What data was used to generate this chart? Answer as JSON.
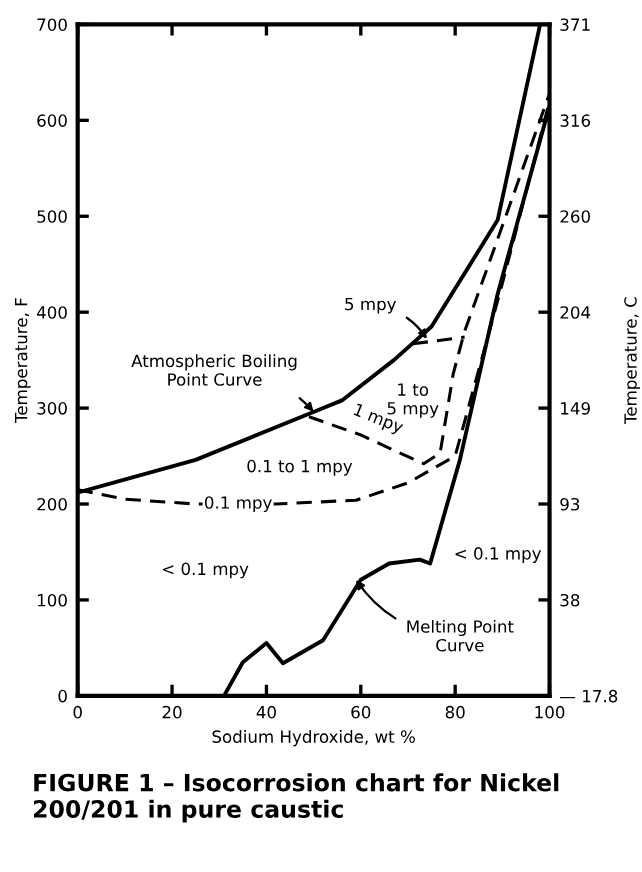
{
  "chart_data": {
    "type": "line",
    "title": "FIGURE 1 – Isocorrosion chart for Nickel 200/201 in pure caustic",
    "xlabel": "Sodium Hydroxide, wt %",
    "ylabel": "Temperature, F",
    "y2label": "Temperature, C",
    "xlim": [
      0,
      100
    ],
    "xticks": [
      0,
      20,
      40,
      60,
      80,
      100
    ],
    "ylim": [
      0,
      700
    ],
    "yticks": [
      0,
      100,
      200,
      300,
      400,
      500,
      600,
      700
    ],
    "y2lim": [
      -17.78,
      371.11
    ],
    "y2ticks": [
      {
        "value": -17.78,
        "label": "— 17.8"
      },
      {
        "value": 37.78,
        "label": "38"
      },
      {
        "value": 93.33,
        "label": "93"
      },
      {
        "value": 148.89,
        "label": "149"
      },
      {
        "value": 204.44,
        "label": "204"
      },
      {
        "value": 260,
        "label": "260"
      },
      {
        "value": 315.56,
        "label": "316"
      },
      {
        "value": 371.11,
        "label": "371"
      }
    ],
    "grid": false,
    "marker": "none",
    "series": [
      {
        "color": "#000000",
        "line_style": "solid",
        "x": [
          0,
          25,
          51,
          56,
          67,
          75,
          89,
          98
        ],
        "values": [
          212,
          246,
          298,
          308,
          350,
          385,
          496,
          700
        ]
      },
      {
        "color": "#000000",
        "line_style": "solid",
        "x": [
          31,
          35,
          40,
          43.5,
          52,
          60,
          66,
          72.5,
          74.7,
          81,
          89,
          100
        ],
        "values": [
          0,
          35,
          55,
          34,
          58,
          121,
          138,
          142,
          138,
          246,
          419,
          615
        ]
      },
      {
        "color": "#000000",
        "line_style": "dashed",
        "x": [
          71,
          82
        ],
        "values": [
          367,
          374
        ]
      },
      {
        "color": "#000000",
        "line_style": "dashed",
        "x": [
          49,
          60,
          67,
          73.3,
          76.8,
          79.6,
          82,
          90,
          100
        ],
        "values": [
          291,
          272,
          256,
          242,
          253,
          336,
          380,
          490,
          628
        ]
      },
      {
        "color": "#000000",
        "line_style": "dashed",
        "x": [
          0,
          10,
          25,
          42,
          59,
          70,
          80,
          90,
          100
        ],
        "values": [
          215,
          205,
          200,
          200,
          204,
          222,
          250,
          430,
          620
        ]
      }
    ],
    "annotations": [
      {
        "text": "5 mpy",
        "x": 74,
        "y": 372
      },
      {
        "text": "Atmospheric Boiling\nPoint Curve",
        "x": 50,
        "y": 296
      },
      "1 to\n5 mpy",
      {
        "text": "1 mpy",
        "x": 63,
        "y": 268
      },
      "0.1 to 1 mpy",
      {
        "text": "0.1 mpy",
        "x": 34,
        "y": 200
      },
      "< 0.1 mpy",
      "< 0.1 mpy",
      {
        "text": "Melting Point\nCurve",
        "x": 59,
        "y": 121
      }
    ]
  }
}
